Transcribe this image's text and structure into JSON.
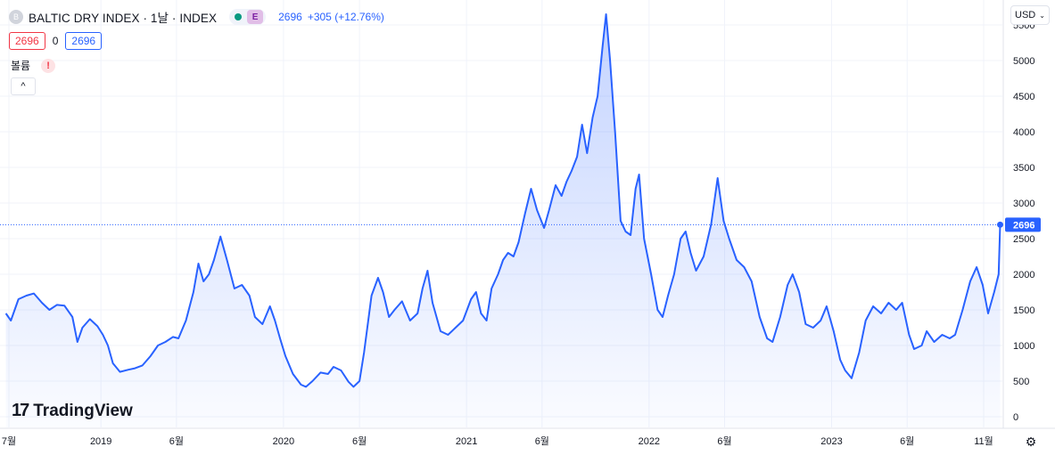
{
  "header": {
    "symbol_badge": "B",
    "title": "BALTIC DRY INDEX · 1날 · INDEX",
    "e_badge": "E",
    "last_value": "2696",
    "change": "+305 (+12.76%)"
  },
  "ohlc_row": {
    "red_value": "2696",
    "zero": "0",
    "blue_value": "2696"
  },
  "volume_row": {
    "label": "볼륨",
    "warning": "!"
  },
  "collapse_icon": "^",
  "currency": {
    "label": "USD",
    "chevron": "⌄"
  },
  "logo": {
    "mark": "17",
    "text": "TradingView"
  },
  "settings_icon": "⚙",
  "colors": {
    "line": "#2962ff",
    "fill_top": "rgba(41,98,255,0.28)",
    "fill_bottom": "rgba(41,98,255,0.02)",
    "price_tag": "#2962ff"
  },
  "chart_data": {
    "type": "area",
    "title": "BALTIC DRY INDEX",
    "xlabel": "",
    "ylabel": "",
    "ylim": [
      -150,
      5850
    ],
    "y_ticks": [
      0,
      500,
      1000,
      1500,
      2000,
      2500,
      3000,
      3500,
      4000,
      4500,
      5000,
      5500
    ],
    "x_ticks": [
      {
        "label": "7월",
        "date": "2018-07-01"
      },
      {
        "label": "2019",
        "date": "2019-01-01"
      },
      {
        "label": "6월",
        "date": "2019-06-01"
      },
      {
        "label": "2020",
        "date": "2020-01-01"
      },
      {
        "label": "6월",
        "date": "2020-06-01"
      },
      {
        "label": "2021",
        "date": "2021-01-01"
      },
      {
        "label": "6월",
        "date": "2021-06-01"
      },
      {
        "label": "2022",
        "date": "2022-01-01"
      },
      {
        "label": "6월",
        "date": "2022-06-01"
      },
      {
        "label": "2023",
        "date": "2023-01-01"
      },
      {
        "label": "6월",
        "date": "2023-06-01"
      },
      {
        "label": "11월",
        "date": "2023-11-01"
      }
    ],
    "last_price_label": "2696",
    "last_price": 2696,
    "grid": true,
    "series": [
      {
        "values": [
          [
            "2018-06-25",
            1450
          ],
          [
            "2018-07-05",
            1350
          ],
          [
            "2018-07-20",
            1650
          ],
          [
            "2018-08-05",
            1700
          ],
          [
            "2018-08-20",
            1730
          ],
          [
            "2018-09-05",
            1600
          ],
          [
            "2018-09-20",
            1500
          ],
          [
            "2018-10-05",
            1570
          ],
          [
            "2018-10-20",
            1560
          ],
          [
            "2018-11-05",
            1400
          ],
          [
            "2018-11-15",
            1050
          ],
          [
            "2018-11-25",
            1250
          ],
          [
            "2018-12-10",
            1370
          ],
          [
            "2018-12-25",
            1270
          ],
          [
            "2019-01-05",
            1150
          ],
          [
            "2019-01-15",
            1000
          ],
          [
            "2019-01-25",
            750
          ],
          [
            "2019-02-08",
            630
          ],
          [
            "2019-02-25",
            660
          ],
          [
            "2019-03-10",
            680
          ],
          [
            "2019-03-25",
            720
          ],
          [
            "2019-04-10",
            850
          ],
          [
            "2019-04-25",
            1000
          ],
          [
            "2019-05-10",
            1050
          ],
          [
            "2019-05-25",
            1120
          ],
          [
            "2019-06-05",
            1100
          ],
          [
            "2019-06-20",
            1350
          ],
          [
            "2019-07-05",
            1750
          ],
          [
            "2019-07-15",
            2150
          ],
          [
            "2019-07-25",
            1900
          ],
          [
            "2019-08-05",
            2000
          ],
          [
            "2019-08-15",
            2200
          ],
          [
            "2019-08-28",
            2530
          ],
          [
            "2019-09-10",
            2200
          ],
          [
            "2019-09-25",
            1800
          ],
          [
            "2019-10-10",
            1850
          ],
          [
            "2019-10-25",
            1700
          ],
          [
            "2019-11-05",
            1400
          ],
          [
            "2019-11-20",
            1300
          ],
          [
            "2019-12-05",
            1550
          ],
          [
            "2019-12-15",
            1350
          ],
          [
            "2019-12-25",
            1100
          ],
          [
            "2020-01-05",
            850
          ],
          [
            "2020-01-20",
            600
          ],
          [
            "2020-02-05",
            450
          ],
          [
            "2020-02-15",
            420
          ],
          [
            "2020-02-28",
            500
          ],
          [
            "2020-03-15",
            620
          ],
          [
            "2020-03-30",
            600
          ],
          [
            "2020-04-10",
            700
          ],
          [
            "2020-04-25",
            650
          ],
          [
            "2020-05-10",
            490
          ],
          [
            "2020-05-20",
            420
          ],
          [
            "2020-06-01",
            500
          ],
          [
            "2020-06-10",
            900
          ],
          [
            "2020-06-25",
            1700
          ],
          [
            "2020-07-08",
            1950
          ],
          [
            "2020-07-18",
            1750
          ],
          [
            "2020-07-30",
            1400
          ],
          [
            "2020-08-10",
            1500
          ],
          [
            "2020-08-25",
            1620
          ],
          [
            "2020-09-10",
            1350
          ],
          [
            "2020-09-25",
            1450
          ],
          [
            "2020-10-05",
            1800
          ],
          [
            "2020-10-15",
            2050
          ],
          [
            "2020-10-25",
            1600
          ],
          [
            "2020-11-10",
            1200
          ],
          [
            "2020-11-25",
            1150
          ],
          [
            "2020-12-10",
            1250
          ],
          [
            "2020-12-25",
            1350
          ],
          [
            "2021-01-10",
            1650
          ],
          [
            "2021-01-20",
            1750
          ],
          [
            "2021-01-30",
            1450
          ],
          [
            "2021-02-10",
            1350
          ],
          [
            "2021-02-20",
            1800
          ],
          [
            "2021-03-05",
            2000
          ],
          [
            "2021-03-15",
            2200
          ],
          [
            "2021-03-25",
            2300
          ],
          [
            "2021-04-05",
            2250
          ],
          [
            "2021-04-15",
            2450
          ],
          [
            "2021-04-28",
            2850
          ],
          [
            "2021-05-10",
            3200
          ],
          [
            "2021-05-22",
            2900
          ],
          [
            "2021-06-05",
            2650
          ],
          [
            "2021-06-15",
            2900
          ],
          [
            "2021-06-28",
            3250
          ],
          [
            "2021-07-10",
            3100
          ],
          [
            "2021-07-20",
            3300
          ],
          [
            "2021-07-30",
            3450
          ],
          [
            "2021-08-10",
            3650
          ],
          [
            "2021-08-20",
            4100
          ],
          [
            "2021-08-30",
            3700
          ],
          [
            "2021-09-10",
            4200
          ],
          [
            "2021-09-20",
            4500
          ],
          [
            "2021-09-30",
            5200
          ],
          [
            "2021-10-07",
            5650
          ],
          [
            "2021-10-15",
            5000
          ],
          [
            "2021-10-25",
            4000
          ],
          [
            "2021-11-05",
            2750
          ],
          [
            "2021-11-15",
            2600
          ],
          [
            "2021-11-25",
            2550
          ],
          [
            "2021-12-05",
            3200
          ],
          [
            "2021-12-12",
            3400
          ],
          [
            "2021-12-22",
            2500
          ],
          [
            "2022-01-05",
            2000
          ],
          [
            "2022-01-18",
            1500
          ],
          [
            "2022-01-28",
            1400
          ],
          [
            "2022-02-08",
            1700
          ],
          [
            "2022-02-20",
            2000
          ],
          [
            "2022-03-05",
            2500
          ],
          [
            "2022-03-15",
            2600
          ],
          [
            "2022-03-25",
            2300
          ],
          [
            "2022-04-05",
            2050
          ],
          [
            "2022-04-20",
            2250
          ],
          [
            "2022-05-05",
            2700
          ],
          [
            "2022-05-18",
            3350
          ],
          [
            "2022-05-30",
            2750
          ],
          [
            "2022-06-10",
            2500
          ],
          [
            "2022-06-25",
            2200
          ],
          [
            "2022-07-10",
            2100
          ],
          [
            "2022-07-25",
            1900
          ],
          [
            "2022-08-10",
            1400
          ],
          [
            "2022-08-25",
            1100
          ],
          [
            "2022-09-05",
            1050
          ],
          [
            "2022-09-20",
            1400
          ],
          [
            "2022-10-05",
            1850
          ],
          [
            "2022-10-15",
            2000
          ],
          [
            "2022-10-28",
            1750
          ],
          [
            "2022-11-10",
            1300
          ],
          [
            "2022-11-25",
            1250
          ],
          [
            "2022-12-10",
            1350
          ],
          [
            "2022-12-22",
            1550
          ],
          [
            "2023-01-05",
            1200
          ],
          [
            "2023-01-18",
            800
          ],
          [
            "2023-01-28",
            650
          ],
          [
            "2023-02-10",
            540
          ],
          [
            "2023-02-25",
            900
          ],
          [
            "2023-03-10",
            1350
          ],
          [
            "2023-03-25",
            1550
          ],
          [
            "2023-04-10",
            1450
          ],
          [
            "2023-04-25",
            1600
          ],
          [
            "2023-05-10",
            1500
          ],
          [
            "2023-05-22",
            1600
          ],
          [
            "2023-06-05",
            1150
          ],
          [
            "2023-06-15",
            950
          ],
          [
            "2023-06-30",
            1000
          ],
          [
            "2023-07-10",
            1200
          ],
          [
            "2023-07-25",
            1050
          ],
          [
            "2023-08-10",
            1150
          ],
          [
            "2023-08-25",
            1100
          ],
          [
            "2023-09-05",
            1150
          ],
          [
            "2023-09-20",
            1500
          ],
          [
            "2023-10-05",
            1900
          ],
          [
            "2023-10-18",
            2100
          ],
          [
            "2023-10-30",
            1850
          ],
          [
            "2023-11-10",
            1450
          ],
          [
            "2023-11-22",
            1750
          ],
          [
            "2023-12-01",
            2000
          ],
          [
            "2023-12-04",
            2696
          ]
        ]
      }
    ]
  }
}
